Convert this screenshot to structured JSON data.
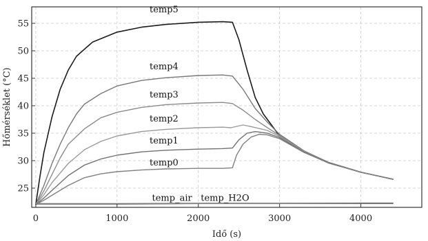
{
  "chart_data": {
    "type": "line",
    "title": "",
    "xlabel": "Idő (s)",
    "ylabel": "Hőmérséklet (°C)",
    "xlim": [
      -50,
      4750
    ],
    "ylim": [
      21.5,
      58
    ],
    "x_ticks": [
      0,
      1000,
      2000,
      3000,
      4000
    ],
    "x_tick_labels": [
      "0",
      "1000",
      "2000",
      "3000",
      "4000"
    ],
    "y_ticks": [
      25,
      30,
      35,
      40,
      45,
      50,
      55
    ],
    "y_tick_labels": [
      "25",
      "30",
      "35",
      "40",
      "45",
      "50",
      "55"
    ],
    "grid": true,
    "legend": "none (inline series labels)",
    "colors": {
      "temp5": "#1a1a1a",
      "temp4": "#777777",
      "temp3": "#8a8a8a",
      "temp2": "#999999",
      "temp1": "#707070",
      "temp0": "#808080",
      "temp_air": "#555555",
      "temp_H2O": "#888888"
    },
    "series": [
      {
        "name": "temp5",
        "label": "temp5",
        "label_at": [
          1400,
          57
        ],
        "points": [
          [
            0,
            22
          ],
          [
            50,
            27
          ],
          [
            100,
            31.5
          ],
          [
            200,
            38
          ],
          [
            300,
            43
          ],
          [
            400,
            46.5
          ],
          [
            500,
            49
          ],
          [
            700,
            51.6
          ],
          [
            1000,
            53.4
          ],
          [
            1300,
            54.3
          ],
          [
            1600,
            54.8
          ],
          [
            2000,
            55.2
          ],
          [
            2300,
            55.3
          ],
          [
            2420,
            55.2
          ],
          [
            2500,
            52
          ],
          [
            2600,
            46.5
          ],
          [
            2700,
            41.5
          ],
          [
            2800,
            38.5
          ],
          [
            2900,
            36.5
          ],
          [
            3000,
            34.5
          ],
          [
            3300,
            31.6
          ],
          [
            3600,
            29.6
          ],
          [
            4000,
            27.9
          ],
          [
            4400,
            26.6
          ]
        ]
      },
      {
        "name": "temp4",
        "label": "temp4",
        "label_at": [
          1400,
          46.6
        ],
        "points": [
          [
            0,
            22
          ],
          [
            100,
            25.5
          ],
          [
            200,
            29.5
          ],
          [
            300,
            33
          ],
          [
            400,
            36
          ],
          [
            500,
            38.5
          ],
          [
            600,
            40.3
          ],
          [
            800,
            42.2
          ],
          [
            1000,
            43.6
          ],
          [
            1300,
            44.6
          ],
          [
            1600,
            45.1
          ],
          [
            2000,
            45.5
          ],
          [
            2300,
            45.6
          ],
          [
            2420,
            45.4
          ],
          [
            2550,
            43
          ],
          [
            2700,
            39.5
          ],
          [
            2850,
            37
          ],
          [
            3000,
            34.8
          ],
          [
            3300,
            31.8
          ],
          [
            3600,
            29.7
          ],
          [
            4000,
            27.9
          ],
          [
            4400,
            26.6
          ]
        ]
      },
      {
        "name": "temp3",
        "label": "temp3",
        "label_at": [
          1400,
          41.5
        ],
        "points": [
          [
            0,
            22
          ],
          [
            100,
            24.5
          ],
          [
            200,
            27.5
          ],
          [
            300,
            30.5
          ],
          [
            400,
            33
          ],
          [
            600,
            35.8
          ],
          [
            800,
            37.8
          ],
          [
            1000,
            38.8
          ],
          [
            1300,
            39.7
          ],
          [
            1600,
            40.2
          ],
          [
            2000,
            40.5
          ],
          [
            2300,
            40.6
          ],
          [
            2420,
            40.4
          ],
          [
            2550,
            39.2
          ],
          [
            2700,
            37.5
          ],
          [
            2850,
            36
          ],
          [
            3000,
            34.6
          ],
          [
            3300,
            31.7
          ],
          [
            3600,
            29.7
          ],
          [
            4000,
            27.9
          ],
          [
            4400,
            26.6
          ]
        ]
      },
      {
        "name": "temp2",
        "label": "temp2",
        "label_at": [
          1400,
          37.1
        ],
        "points": [
          [
            0,
            22
          ],
          [
            100,
            23.8
          ],
          [
            200,
            26
          ],
          [
            400,
            29.5
          ],
          [
            600,
            32
          ],
          [
            800,
            33.5
          ],
          [
            1000,
            34.5
          ],
          [
            1300,
            35.3
          ],
          [
            1600,
            35.7
          ],
          [
            2000,
            36
          ],
          [
            2300,
            36.1
          ],
          [
            2400,
            36
          ],
          [
            2550,
            36.5
          ],
          [
            2650,
            36.2
          ],
          [
            2850,
            35.5
          ],
          [
            3000,
            34.4
          ],
          [
            3300,
            31.7
          ],
          [
            3600,
            29.7
          ],
          [
            4000,
            27.9
          ],
          [
            4400,
            26.6
          ]
        ]
      },
      {
        "name": "temp1",
        "label": "temp1",
        "label_at": [
          1400,
          33.1
        ],
        "points": [
          [
            0,
            22
          ],
          [
            100,
            23.2
          ],
          [
            200,
            24.6
          ],
          [
            400,
            27.3
          ],
          [
            600,
            29.2
          ],
          [
            800,
            30.3
          ],
          [
            1000,
            31
          ],
          [
            1300,
            31.6
          ],
          [
            1600,
            31.9
          ],
          [
            2000,
            32.1
          ],
          [
            2300,
            32.2
          ],
          [
            2420,
            32.3
          ],
          [
            2500,
            33.8
          ],
          [
            2600,
            35
          ],
          [
            2700,
            35.3
          ],
          [
            2850,
            35
          ],
          [
            3000,
            34.2
          ],
          [
            3300,
            31.6
          ],
          [
            3600,
            29.7
          ],
          [
            4000,
            27.9
          ],
          [
            4400,
            26.6
          ]
        ]
      },
      {
        "name": "temp0",
        "label": "temp0",
        "label_at": [
          1400,
          29.1
        ],
        "points": [
          [
            0,
            22
          ],
          [
            100,
            22.8
          ],
          [
            200,
            23.7
          ],
          [
            400,
            25.5
          ],
          [
            600,
            26.9
          ],
          [
            800,
            27.6
          ],
          [
            1000,
            28
          ],
          [
            1300,
            28.3
          ],
          [
            1600,
            28.5
          ],
          [
            2000,
            28.6
          ],
          [
            2300,
            28.6
          ],
          [
            2420,
            28.7
          ],
          [
            2470,
            31
          ],
          [
            2550,
            33
          ],
          [
            2650,
            34.3
          ],
          [
            2750,
            34.8
          ],
          [
            2850,
            34.7
          ],
          [
            3000,
            34
          ],
          [
            3300,
            31.5
          ],
          [
            3600,
            29.6
          ],
          [
            4000,
            27.9
          ],
          [
            4400,
            26.6
          ]
        ]
      },
      {
        "name": "temp_air",
        "label": "temp_air",
        "label_at": [
          1430,
          22.7
        ],
        "points": [
          [
            0,
            22.1
          ],
          [
            1000,
            22.1
          ],
          [
            2000,
            22.2
          ],
          [
            3000,
            22.2
          ],
          [
            4000,
            22.2
          ],
          [
            4400,
            22.2
          ]
        ]
      },
      {
        "name": "temp_H2O",
        "label": "temp_H2O",
        "label_at": [
          2030,
          22.7
        ],
        "points": [
          [
            0,
            22.2
          ],
          [
            1000,
            22.2
          ],
          [
            2000,
            22.25
          ],
          [
            3000,
            22.25
          ],
          [
            4000,
            22.3
          ],
          [
            4400,
            22.3
          ]
        ]
      }
    ]
  }
}
